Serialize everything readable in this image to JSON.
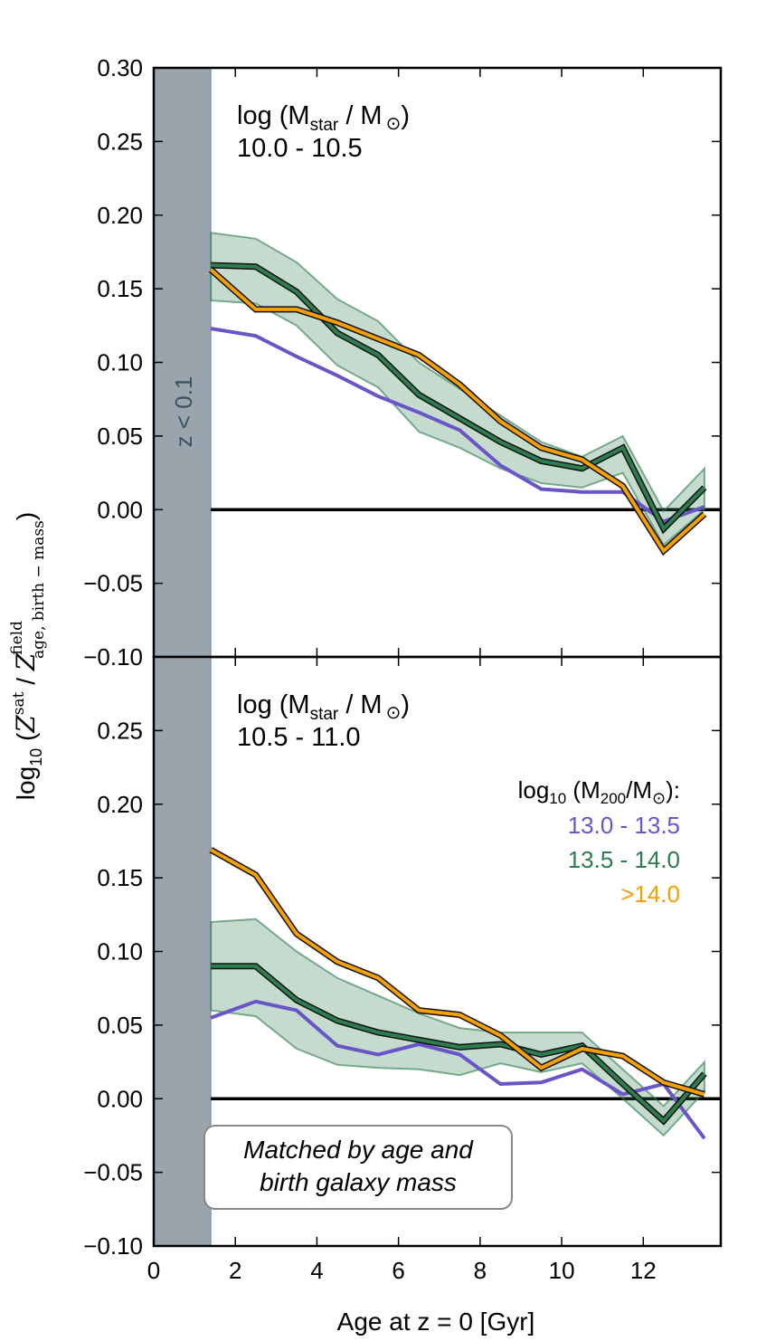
{
  "chart_data": [
    {
      "type": "line",
      "panel_label": [
        "log (M",
        "star",
        " / M",
        "⊙",
        ")"
      ],
      "panel_range": "10.0 - 10.5",
      "x": [
        1.4,
        2.5,
        3.5,
        4.5,
        5.5,
        6.5,
        7.5,
        8.5,
        9.5,
        10.5,
        11.5,
        12.5,
        13.5
      ],
      "xlim": [
        0,
        13.9
      ],
      "ylim": [
        -0.1,
        0.3
      ],
      "yticks": [
        -0.1,
        -0.05,
        0.0,
        0.05,
        0.1,
        0.15,
        0.2,
        0.25,
        0.3
      ],
      "ytick_labels": [
        "−0.10",
        "−0.05",
        "0.00",
        "0.05",
        "0.10",
        "0.15",
        "0.20",
        "0.25",
        "0.30"
      ],
      "series": [
        {
          "name": "13.0 - 13.5",
          "color": "#6a55c8",
          "values": [
            0.123,
            0.118,
            0.104,
            0.091,
            0.077,
            0.066,
            0.054,
            0.03,
            0.014,
            0.012,
            0.012,
            -0.008,
            0.002
          ]
        },
        {
          "name": "13.5 - 14.0",
          "color": "#2e7d4f",
          "values": [
            0.166,
            0.165,
            0.148,
            0.12,
            0.105,
            0.078,
            0.062,
            0.046,
            0.033,
            0.028,
            0.042,
            -0.013,
            0.015
          ],
          "band_upper": [
            0.188,
            0.184,
            0.168,
            0.143,
            0.128,
            0.1,
            0.082,
            0.064,
            0.046,
            0.036,
            0.05,
            -0.001,
            0.028
          ],
          "band_lower": [
            0.142,
            0.14,
            0.125,
            0.098,
            0.083,
            0.053,
            0.042,
            0.028,
            0.018,
            0.015,
            0.025,
            -0.024,
            0.0
          ]
        },
        {
          "name": ">14.0",
          "color": "#f5a000",
          "values": [
            0.163,
            0.136,
            0.136,
            0.127,
            0.116,
            0.105,
            0.085,
            0.06,
            0.042,
            0.034,
            0.016,
            -0.028,
            -0.003
          ]
        }
      ]
    },
    {
      "type": "line",
      "panel_label": [
        "log (M",
        "star",
        " / M",
        "⊙",
        ")"
      ],
      "panel_range": "10.5 - 11.0",
      "x": [
        1.4,
        2.5,
        3.5,
        4.5,
        5.5,
        6.5,
        7.5,
        8.5,
        9.5,
        10.5,
        11.5,
        12.5,
        13.5
      ],
      "xlim": [
        0,
        13.9
      ],
      "ylim": [
        -0.1,
        0.3
      ],
      "xticks": [
        0,
        2,
        4,
        6,
        8,
        10,
        12
      ],
      "yticks": [
        -0.1,
        -0.05,
        0.0,
        0.05,
        0.1,
        0.15,
        0.2,
        0.25
      ],
      "ytick_labels": [
        "−0.10",
        "−0.05",
        "0.00",
        "0.05",
        "0.10",
        "0.15",
        "0.20",
        "0.25"
      ],
      "series": [
        {
          "name": "13.0 - 13.5",
          "color": "#6a55c8",
          "values": [
            0.055,
            0.066,
            0.06,
            0.036,
            0.03,
            0.037,
            0.03,
            0.01,
            0.011,
            0.02,
            0.003,
            0.01,
            -0.027
          ]
        },
        {
          "name": "13.5 - 14.0",
          "color": "#2e7d4f",
          "values": [
            0.09,
            0.09,
            0.067,
            0.053,
            0.045,
            0.04,
            0.035,
            0.037,
            0.03,
            0.036,
            0.01,
            -0.015,
            0.017
          ],
          "band_upper": [
            0.12,
            0.122,
            0.1,
            0.082,
            0.07,
            0.058,
            0.048,
            0.045,
            0.045,
            0.045,
            0.02,
            -0.005,
            0.025
          ],
          "band_lower": [
            0.06,
            0.056,
            0.034,
            0.023,
            0.021,
            0.02,
            0.016,
            0.024,
            0.018,
            0.024,
            0.0,
            -0.025,
            0.005
          ]
        },
        {
          "name": ">14.0",
          "color": "#f5a000",
          "values": [
            0.169,
            0.152,
            0.112,
            0.093,
            0.082,
            0.06,
            0.057,
            0.043,
            0.021,
            0.034,
            0.029,
            0.011,
            0.003
          ]
        }
      ]
    }
  ],
  "xlabel": "Age at z = 0 [Gyr]",
  "ylabel_parts": [
    "log",
    "10",
    " (",
    "Z",
    "sat",
    " / ",
    "Z",
    "field",
    "age, birth − mass",
    ")"
  ],
  "shaded_region": {
    "x_end": 1.4,
    "label": "z < 0.1",
    "color": "#9aa4ad"
  },
  "legend": {
    "title_parts": [
      "log",
      "10",
      " (M",
      "200",
      "/M",
      "⊙",
      "):"
    ],
    "items": [
      {
        "label": "13.0 - 13.5",
        "color": "#6a55c8"
      },
      {
        "label": "13.5 - 14.0",
        "color": "#2e7d4f"
      },
      {
        "label": ">14.0",
        "color": "#f5a000"
      }
    ]
  },
  "note": {
    "line1": "Matched by age and",
    "line2": "birth galaxy mass"
  }
}
